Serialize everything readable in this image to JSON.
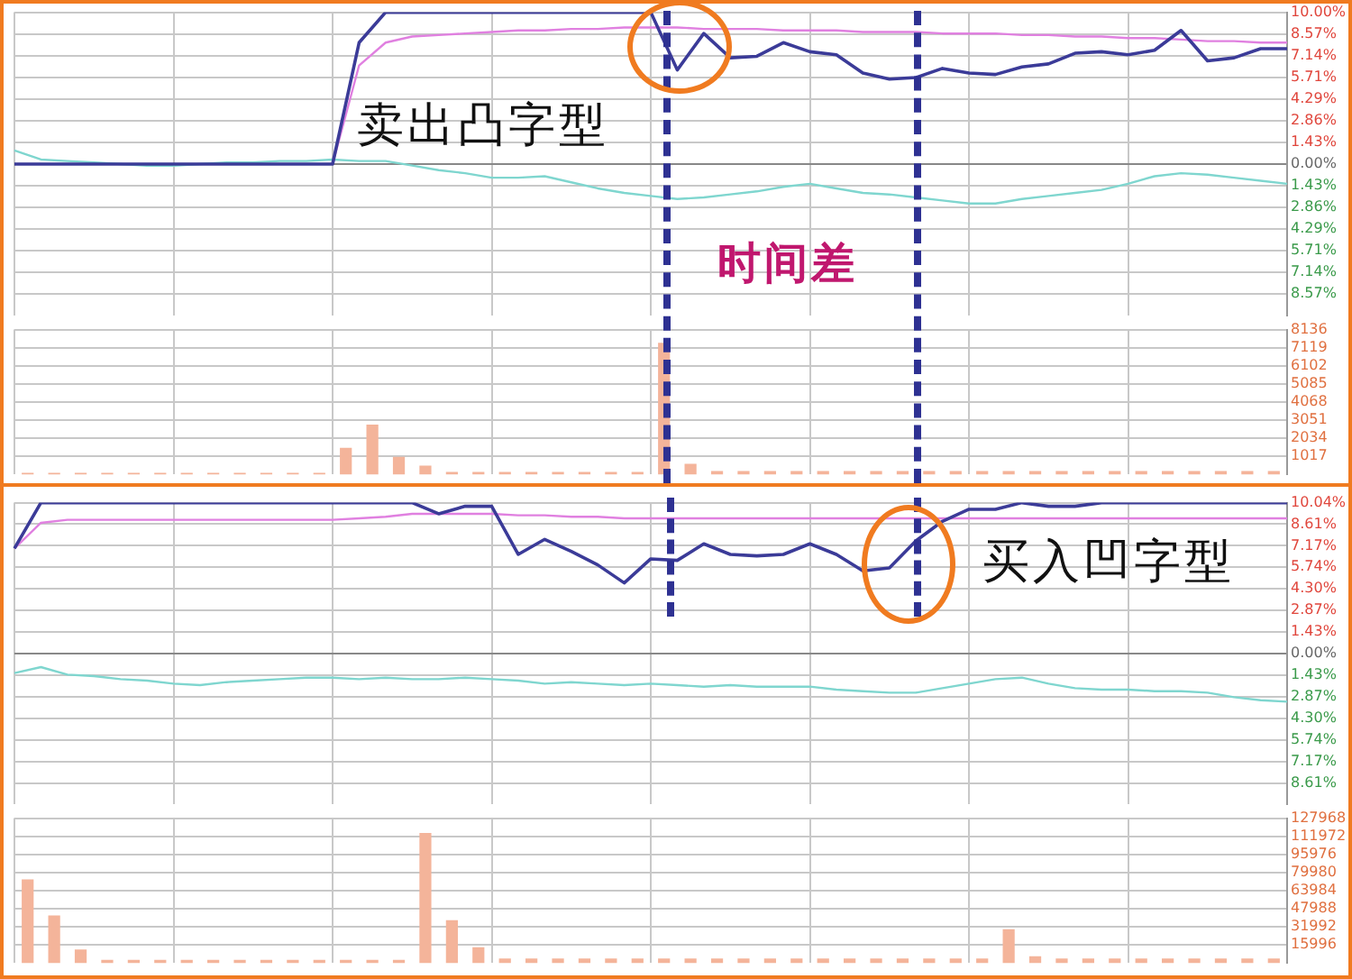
{
  "chart_data": [
    {
      "type": "line",
      "categories": [
        null,
        null,
        null,
        null,
        null,
        null,
        null,
        null,
        null,
        null,
        null,
        null,
        null,
        null,
        null,
        null,
        null,
        null,
        null,
        null,
        null,
        null,
        null,
        null,
        null,
        null,
        null,
        null,
        null,
        null,
        null,
        null,
        null,
        null,
        null,
        null,
        null,
        null,
        null,
        null,
        null,
        null,
        null,
        null,
        null,
        null,
        null,
        null,
        null
      ],
      "ylim": [
        -10,
        10
      ],
      "yticks": [
        {
          "value": 10,
          "label": "10.00%"
        },
        {
          "value": 8.57,
          "label": "8.57%"
        },
        {
          "value": 7.14,
          "label": "7.14%"
        },
        {
          "value": 5.71,
          "label": "5.71%"
        },
        {
          "value": 4.29,
          "label": "4.29%"
        },
        {
          "value": 2.86,
          "label": "2.86%"
        },
        {
          "value": 1.43,
          "label": "1.43%"
        },
        {
          "value": 0,
          "label": "0.00%"
        },
        {
          "value": -1.43,
          "label": "1.43%"
        },
        {
          "value": -2.86,
          "label": "2.86%"
        },
        {
          "value": -4.29,
          "label": "4.29%"
        },
        {
          "value": -5.71,
          "label": "5.71%"
        },
        {
          "value": -7.14,
          "label": "7.14%"
        },
        {
          "value": -8.57,
          "label": "8.57%"
        }
      ],
      "tick_labels": "y",
      "grid": true,
      "legend": false,
      "marker": "none",
      "line_style": "solid",
      "series": [
        {
          "color": "#3b3b98",
          "values": [
            0,
            0,
            0,
            0,
            0,
            0,
            0,
            0,
            0,
            0,
            0,
            0,
            0,
            8,
            10,
            10,
            10,
            10,
            10,
            10,
            10,
            10,
            10,
            10,
            10,
            6.2,
            8.6,
            7.0,
            7.1,
            8.0,
            7.4,
            7.2,
            6.0,
            5.6,
            5.7,
            6.3,
            6.0,
            5.9,
            6.4,
            6.6,
            7.3,
            7.4,
            7.2,
            7.5,
            8.8,
            6.8,
            7.0,
            7.6,
            7.6
          ]
        },
        {
          "color": "#e080e0",
          "values": [
            null,
            null,
            null,
            null,
            null,
            null,
            null,
            null,
            null,
            null,
            null,
            null,
            0,
            6.5,
            8.0,
            8.4,
            8.5,
            8.6,
            8.7,
            8.8,
            8.8,
            8.9,
            8.9,
            9.0,
            9.0,
            9.0,
            8.9,
            8.9,
            8.9,
            8.8,
            8.8,
            8.8,
            8.7,
            8.7,
            8.7,
            8.6,
            8.6,
            8.6,
            8.5,
            8.5,
            8.4,
            8.4,
            8.3,
            8.3,
            8.2,
            8.1,
            8.1,
            8.0,
            8.0
          ]
        },
        {
          "color": "#7fd6cf",
          "values": [
            0.9,
            0.3,
            0.2,
            0.1,
            0.0,
            -0.1,
            -0.1,
            0.0,
            0.1,
            0.1,
            0.2,
            0.2,
            0.3,
            0.2,
            0.2,
            -0.1,
            -0.4,
            -0.6,
            -0.9,
            -0.9,
            -0.8,
            -1.2,
            -1.6,
            -1.9,
            -2.1,
            -2.3,
            -2.2,
            -2.0,
            -1.8,
            -1.5,
            -1.3,
            -1.6,
            -1.9,
            -2.0,
            -2.2,
            -2.4,
            -2.6,
            -2.6,
            -2.3,
            -2.1,
            -1.9,
            -1.7,
            -1.3,
            -0.8,
            -0.6,
            -0.7,
            -0.9,
            -1.1,
            -1.3
          ]
        }
      ],
      "annotations": [
        "卖出凸字型",
        "时间差"
      ]
    },
    {
      "type": "bar",
      "categories": [
        null,
        null,
        null,
        null,
        null,
        null,
        null,
        null,
        null,
        null,
        null,
        null,
        null,
        null,
        null,
        null,
        null,
        null,
        null,
        null,
        null,
        null,
        null,
        null,
        null,
        null,
        null,
        null,
        null,
        null,
        null,
        null,
        null,
        null,
        null,
        null,
        null,
        null,
        null,
        null,
        null,
        null,
        null,
        null,
        null,
        null,
        null,
        null
      ],
      "ylim": [
        0,
        8136
      ],
      "yticks": [
        1017,
        2034,
        3051,
        4068,
        5085,
        6102,
        7119,
        8136
      ],
      "tick_labels": "y",
      "grid": true,
      "legend": false,
      "series": [
        {
          "color": "#f4b49a",
          "values": [
            100,
            100,
            100,
            100,
            100,
            100,
            100,
            100,
            100,
            100,
            100,
            100,
            1500,
            2800,
            1000,
            500,
            150,
            150,
            150,
            150,
            150,
            150,
            150,
            150,
            7400,
            600,
            200,
            200,
            200,
            200,
            200,
            200,
            200,
            200,
            200,
            200,
            200,
            200,
            200,
            200,
            200,
            200,
            200,
            200,
            200,
            200,
            200,
            200
          ]
        }
      ]
    },
    {
      "type": "line",
      "categories": [
        null,
        null,
        null,
        null,
        null,
        null,
        null,
        null,
        null,
        null,
        null,
        null,
        null,
        null,
        null,
        null,
        null,
        null,
        null,
        null,
        null,
        null,
        null,
        null,
        null,
        null,
        null,
        null,
        null,
        null,
        null,
        null,
        null,
        null,
        null,
        null,
        null,
        null,
        null,
        null,
        null,
        null,
        null,
        null,
        null,
        null,
        null,
        null,
        null
      ],
      "ylim": [
        -10.04,
        10.04
      ],
      "yticks": [
        {
          "value": 10.04,
          "label": "10.04%"
        },
        {
          "value": 8.61,
          "label": "8.61%"
        },
        {
          "value": 7.17,
          "label": "7.17%"
        },
        {
          "value": 5.74,
          "label": "5.74%"
        },
        {
          "value": 4.3,
          "label": "4.30%"
        },
        {
          "value": 2.87,
          "label": "2.87%"
        },
        {
          "value": 1.43,
          "label": "1.43%"
        },
        {
          "value": 0,
          "label": "0.00%"
        },
        {
          "value": -1.43,
          "label": "1.43%"
        },
        {
          "value": -2.87,
          "label": "2.87%"
        },
        {
          "value": -4.3,
          "label": "4.30%"
        },
        {
          "value": -5.74,
          "label": "5.74%"
        },
        {
          "value": -7.17,
          "label": "7.17%"
        },
        {
          "value": -8.61,
          "label": "8.61%"
        }
      ],
      "tick_labels": "y",
      "grid": true,
      "legend": false,
      "marker": "none",
      "line_style": "solid",
      "series": [
        {
          "color": "#3b3b98",
          "values": [
            7.0,
            10.04,
            10.04,
            10.04,
            10.04,
            10.04,
            10.04,
            10.04,
            10.04,
            10.04,
            10.04,
            10.04,
            10.04,
            10.04,
            10.04,
            10.04,
            9.3,
            9.8,
            9.8,
            6.6,
            7.6,
            6.8,
            5.9,
            4.7,
            6.3,
            6.2,
            7.3,
            6.6,
            6.5,
            6.6,
            7.3,
            6.6,
            5.5,
            5.7,
            7.5,
            8.8,
            9.6,
            9.6,
            10.04,
            9.8,
            9.8,
            10.04,
            10.04,
            10.04,
            10.04,
            10.04,
            10.04,
            10.04,
            10.04
          ]
        },
        {
          "color": "#e080e0",
          "values": [
            7.0,
            8.7,
            8.9,
            8.9,
            8.9,
            8.9,
            8.9,
            8.9,
            8.9,
            8.9,
            8.9,
            8.9,
            8.9,
            9.0,
            9.1,
            9.3,
            9.3,
            9.3,
            9.3,
            9.2,
            9.2,
            9.1,
            9.1,
            9.0,
            9.0,
            9.0,
            9.0,
            9.0,
            9.0,
            9.0,
            9.0,
            9.0,
            9.0,
            9.0,
            9.0,
            9.0,
            9.0,
            9.0,
            9.0,
            9.0,
            9.0,
            9.0,
            9.0,
            9.0,
            9.0,
            9.0,
            9.0,
            9.0,
            9.0
          ]
        },
        {
          "color": "#7fd6cf",
          "values": [
            -1.3,
            -0.9,
            -1.4,
            -1.5,
            -1.7,
            -1.8,
            -2.0,
            -2.1,
            -1.9,
            -1.8,
            -1.7,
            -1.6,
            -1.6,
            -1.7,
            -1.6,
            -1.7,
            -1.7,
            -1.6,
            -1.7,
            -1.8,
            -2.0,
            -1.9,
            -2.0,
            -2.1,
            -2.0,
            -2.1,
            -2.2,
            -2.1,
            -2.2,
            -2.2,
            -2.2,
            -2.4,
            -2.5,
            -2.6,
            -2.6,
            -2.3,
            -2.0,
            -1.7,
            -1.6,
            -2.0,
            -2.3,
            -2.4,
            -2.4,
            -2.5,
            -2.5,
            -2.6,
            -2.9,
            -3.1,
            -3.2
          ]
        }
      ],
      "annotations": [
        "买入凹字型"
      ]
    },
    {
      "type": "bar",
      "categories": [
        null,
        null,
        null,
        null,
        null,
        null,
        null,
        null,
        null,
        null,
        null,
        null,
        null,
        null,
        null,
        null,
        null,
        null,
        null,
        null,
        null,
        null,
        null,
        null,
        null,
        null,
        null,
        null,
        null,
        null,
        null,
        null,
        null,
        null,
        null,
        null,
        null,
        null,
        null,
        null,
        null,
        null,
        null,
        null,
        null,
        null,
        null,
        null
      ],
      "ylim": [
        0,
        127968
      ],
      "yticks": [
        15996,
        31992,
        47988,
        63984,
        79980,
        95976,
        111972,
        127968
      ],
      "tick_labels": "y",
      "grid": true,
      "legend": false,
      "series": [
        {
          "color": "#f4b49a",
          "values": [
            74000,
            42000,
            12000,
            3000,
            3000,
            3000,
            3000,
            3000,
            3000,
            3000,
            3000,
            3000,
            3000,
            3000,
            3000,
            115000,
            38000,
            14000,
            4000,
            4000,
            4000,
            4000,
            4000,
            4000,
            4000,
            4000,
            4000,
            4000,
            4000,
            4000,
            4000,
            4000,
            4000,
            4000,
            4000,
            4000,
            4000,
            30000,
            6000,
            4000,
            4000,
            4000,
            4000,
            4000,
            4000,
            4000,
            4000,
            4000
          ]
        }
      ]
    }
  ]
}
